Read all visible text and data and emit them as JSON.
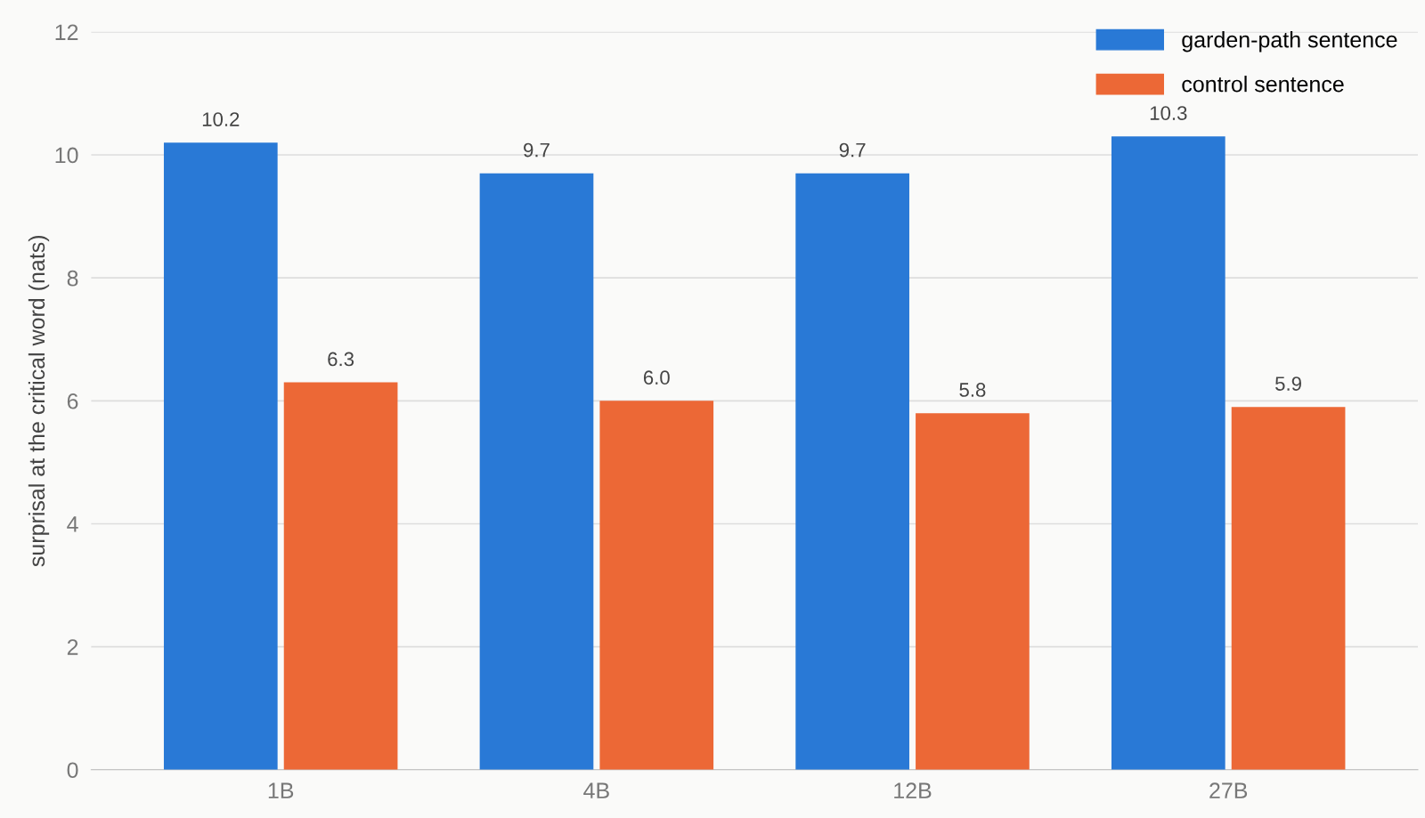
{
  "chart_data": {
    "type": "bar",
    "ylabel": "surprisal at the critical word (nats)",
    "categories": [
      "1B",
      "4B",
      "12B",
      "27B"
    ],
    "series": [
      {
        "name": "garden-path sentence",
        "color": "#2979d6",
        "values": [
          10.2,
          9.7,
          9.7,
          10.3
        ],
        "value_labels": [
          "10.2",
          "9.7",
          "9.7",
          "10.3"
        ]
      },
      {
        "name": "control sentence",
        "color": "#ec6836",
        "values": [
          6.3,
          6.0,
          5.8,
          5.9
        ],
        "value_labels": [
          "6.3",
          "6.0",
          "5.8",
          "5.9"
        ]
      }
    ],
    "ylim": [
      0,
      12
    ],
    "yticks": [
      0,
      2,
      4,
      6,
      8,
      10,
      12
    ],
    "grid": "y",
    "legend": "top right"
  }
}
